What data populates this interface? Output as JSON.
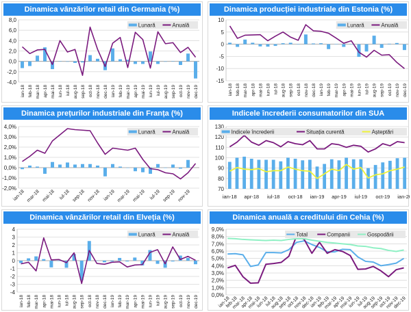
{
  "colors": {
    "title_bar": "#2a8cea",
    "bar": "#5aaeea",
    "purple": "#7a1a7e",
    "yellow": "#eef23a",
    "mint": "#8ff0c4",
    "total": "#5aaeea"
  },
  "chart_data": [
    {
      "type": "bar+line",
      "title": "Dinamica vânzărilor retail din Germania (%)",
      "categories": [
        "ian-18",
        "feb-18",
        "mar-18",
        "apr-18",
        "mai-18",
        "iun-18",
        "iul-18",
        "aug-18",
        "sep-18",
        "oct-18",
        "nov-18",
        "dec-18",
        "ian-19",
        "feb-19",
        "mar-19",
        "apr-19",
        "mai-19",
        "iun-19",
        "iul-19",
        "aug-19",
        "sep-19",
        "oct-19",
        "nov-19",
        "dec-19"
      ],
      "x_tick_step": 1,
      "ylim": [
        -4,
        8
      ],
      "y_tick_labels": [
        "8,0",
        "6,0",
        "4,0",
        "2,0",
        "0,0",
        "-2,0",
        "-4,0"
      ],
      "grid": true,
      "legend": "top-right",
      "series": [
        {
          "name": "Lunară",
          "kind": "bar",
          "color": "#5aaeea",
          "values": [
            -1.3,
            -0.9,
            1.1,
            2.7,
            -1.5,
            0.05,
            0.0,
            -0.3,
            -0.2,
            1.2,
            0.5,
            -1.7,
            2.5,
            0.4,
            0.3,
            -0.5,
            -0.5,
            1.9,
            -0.5,
            0.0,
            0.05,
            -0.7,
            1.5,
            -3.3
          ]
        },
        {
          "name": "Anuală",
          "kind": "line",
          "color": "#7a1a7e",
          "values": [
            2.8,
            1.5,
            2.2,
            2.3,
            -0.6,
            4.0,
            1.8,
            2.3,
            -2.7,
            6.6,
            2.3,
            -1.0,
            3.5,
            4.6,
            -1.2,
            5.6,
            4.2,
            -1.3,
            5.7,
            3.4,
            3.6,
            1.7,
            2.7,
            0.8
          ]
        }
      ]
    },
    {
      "type": "bar+line",
      "title": "Dinamica producției industriale din Estonia (%)",
      "categories": [
        "ian-18",
        "feb-18",
        "mar-18",
        "apr-18",
        "mai-18",
        "iun-18",
        "iul-18",
        "aug-18",
        "sep-18",
        "oct-18",
        "nov-18",
        "dec-18",
        "ian-19",
        "feb-19",
        "mar-19",
        "apr-19",
        "mai-19",
        "iun-19",
        "iul-19",
        "aug-19",
        "sep-19",
        "oct-19",
        "nov-19",
        "dec-19"
      ],
      "x_tick_step": 1,
      "ylim": [
        -15,
        10
      ],
      "y_tick_labels": [
        "10",
        "5",
        "0",
        "-5",
        "-10",
        "-15"
      ],
      "grid": true,
      "legend": "top-right",
      "series": [
        {
          "name": "Lunară",
          "kind": "bar",
          "color": "#5aaeea",
          "values": [
            0.6,
            -1.1,
            1.9,
            0.6,
            -0.9,
            -1.0,
            -0.7,
            0.4,
            0.6,
            0.0,
            4.0,
            0.3,
            0.4,
            -2.0,
            0.05,
            -1.1,
            0.0,
            -5.2,
            -3.0,
            3.5,
            -1.5,
            0.2,
            0.5,
            -2.4
          ]
        },
        {
          "name": "Anuală",
          "kind": "line",
          "color": "#7a1a7e",
          "values": [
            7.5,
            2.4,
            3.7,
            3.8,
            3.9,
            1.4,
            3.3,
            5.0,
            2.9,
            1.6,
            8.0,
            5.5,
            5.3,
            4.5,
            2.5,
            0.4,
            1.4,
            -3.3,
            -5.3,
            -2.5,
            -4.5,
            -4.3,
            -7.5,
            -10.0
          ]
        }
      ]
    },
    {
      "type": "bar+line",
      "title": "Dinamica prețurilor industriale din Franța (%)",
      "categories": [
        "ian-18",
        "feb-18",
        "mar-18",
        "apr-18",
        "mai-18",
        "iun-18",
        "iul-18",
        "aug-18",
        "sep-18",
        "oct-18",
        "nov-18",
        "dec-18",
        "ian-19",
        "feb-19",
        "mar-19",
        "apr-19",
        "mai-19",
        "iun-19",
        "iul-19",
        "aug-19",
        "sep-19",
        "oct-19",
        "nov-19",
        "dec-19"
      ],
      "x_tick_step": 2,
      "ylim": [
        -2,
        4
      ],
      "y_tick_labels": [
        "4,0%",
        "3,0%",
        "2,0%",
        "1,0%",
        "0,0%",
        "-1,0%",
        "-2,0%"
      ],
      "grid": true,
      "legend": "top-right",
      "series": [
        {
          "name": "Lunară",
          "kind": "bar",
          "color": "#5aaeea",
          "values": [
            -0.15,
            0.2,
            0.1,
            -0.6,
            0.55,
            0.3,
            0.5,
            0.3,
            0.35,
            0.35,
            0.2,
            -0.85,
            0.35,
            0.1,
            0.0,
            -0.35,
            -0.45,
            -0.6,
            0.35,
            0.0,
            0.3,
            -0.1,
            0.75,
            null
          ]
        },
        {
          "name": "Anuală",
          "kind": "line",
          "color": "#7a1a7e",
          "values": [
            0.6,
            1.1,
            1.7,
            1.4,
            2.6,
            3.2,
            3.8,
            3.7,
            3.65,
            3.6,
            2.4,
            1.3,
            1.9,
            1.8,
            1.7,
            1.9,
            0.8,
            -0.1,
            -0.2,
            -0.5,
            -0.6,
            -1.1,
            -0.5,
            0.4
          ]
        }
      ]
    },
    {
      "type": "bar+line",
      "title": "Indicele încrederii consumatorilor din SUA",
      "categories": [
        "ian-18",
        "feb-18",
        "mar-18",
        "apr-18",
        "mai-18",
        "iun-18",
        "iul-18",
        "aug-18",
        "sep-18",
        "oct-18",
        "nov-18",
        "dec-18",
        "ian-19",
        "feb-19",
        "mar-19",
        "apr-19",
        "mai-19",
        "iun-19",
        "iul-19",
        "aug-19",
        "sep-19",
        "oct-19",
        "nov-19",
        "dec-19",
        "ian-20"
      ],
      "x_tick_step": 3,
      "ylim": [
        70,
        130
      ],
      "y_tick_labels": [
        "130",
        "120",
        "110",
        "100",
        "90",
        "80",
        "70"
      ],
      "grid": true,
      "legend": "top",
      "series": [
        {
          "name": "Indicele încrederii",
          "kind": "bar",
          "color": "#5aaeea",
          "values": [
            96,
            100,
            101,
            99,
            98,
            98,
            98,
            96.5,
            100,
            99,
            97.5,
            98,
            91.5,
            94,
            98.5,
            97.5,
            100,
            98.5,
            98.5,
            90,
            93,
            95.5,
            97,
            99.5,
            100
          ]
        },
        {
          "name": "Situația curentă",
          "kind": "line",
          "color": "#7a1a7e",
          "values": [
            110.5,
            115,
            121.5,
            115,
            112,
            116.5,
            114.5,
            110.5,
            115.5,
            113.5,
            112.5,
            116.5,
            108.5,
            108.5,
            113.5,
            112.5,
            110,
            112,
            111,
            105.5,
            108.5,
            113.5,
            111.5,
            115.5,
            114.5
          ]
        },
        {
          "name": "Așteptări",
          "kind": "line",
          "color": "#eef23a",
          "values": [
            87,
            90.5,
            89,
            88.5,
            89.5,
            86.5,
            87.5,
            87.5,
            91,
            89,
            87.5,
            87,
            80,
            84.5,
            89,
            87.5,
            93.5,
            89,
            90.5,
            80.5,
            83.5,
            84.5,
            87.5,
            89,
            91
          ]
        }
      ]
    },
    {
      "type": "bar+line",
      "title": "Dinamica vânzărilor retail din Elveția (%)",
      "categories": [
        "ian-18",
        "feb-18",
        "mar-18",
        "apr-18",
        "mai-18",
        "iun-18",
        "iul-18",
        "aug-18",
        "sep-18",
        "oct-18",
        "nov-18",
        "dec-18",
        "ian-19",
        "feb-19",
        "mar-19",
        "apr-19",
        "mai-19",
        "iun-19",
        "iul-19",
        "aug-19",
        "sep-19",
        "oct-19",
        "nov-19",
        "dec-19"
      ],
      "x_tick_step": 1,
      "ylim": [
        -4,
        4
      ],
      "y_tick_labels": [
        "4",
        "3",
        "2",
        "1",
        "0",
        "-1",
        "-2",
        "-3",
        "-4"
      ],
      "grid": true,
      "legend": "top-right",
      "series": [
        {
          "name": "Lunară",
          "kind": "bar",
          "color": "#5aaeea",
          "values": [
            -0.3,
            0.3,
            0.55,
            0.2,
            -0.85,
            0.0,
            -0.9,
            0.85,
            -2.5,
            2.5,
            0.0,
            -0.2,
            -0.1,
            0.35,
            -0.1,
            0.4,
            -0.6,
            1.35,
            -0.4,
            -0.9,
            -0.1,
            0.65,
            0.35,
            -0.45
          ]
        },
        {
          "name": "Anuală",
          "kind": "line",
          "color": "#7a1a7e",
          "values": [
            -0.4,
            -0.2,
            -1.3,
            2.9,
            0.1,
            0.15,
            -0.25,
            1.0,
            -2.9,
            1.3,
            -0.35,
            -0.45,
            -0.2,
            -0.15,
            -0.8,
            -0.55,
            -0.5,
            1.05,
            1.4,
            -0.4,
            1.75,
            0.15,
            0.55,
            0.05
          ]
        }
      ]
    },
    {
      "type": "line",
      "title": "Dinamica anuală a creditului din Cehia (%)",
      "categories": [
        "ian-18",
        "feb-18",
        "mar-18",
        "apr-18",
        "mai-18",
        "iun-18",
        "iul-18",
        "aug-18",
        "sep-18",
        "oct-18",
        "nov-18",
        "dec-18",
        "ian-19",
        "feb-19",
        "mar-19",
        "apr-19",
        "mai-19",
        "iun-19",
        "iul-19",
        "aug-19",
        "sep-19",
        "oct-19",
        "nov-19",
        "dec-19"
      ],
      "x_tick_step": 1,
      "ylim": [
        0,
        9
      ],
      "y_tick_labels": [
        "9,0%",
        "8,0%",
        "7,0%",
        "6,0%",
        "5,0%",
        "4,0%",
        "3,0%",
        "2,0%",
        "1,0%",
        "0,0%"
      ],
      "grid": true,
      "legend": "top",
      "series": [
        {
          "name": "Total",
          "kind": "line",
          "color": "#5aaeea",
          "values": [
            5.6,
            5.65,
            5.5,
            3.9,
            4.1,
            5.8,
            5.8,
            5.75,
            6.2,
            7.2,
            7.4,
            6.9,
            6.5,
            5.9,
            5.9,
            6.25,
            6.2,
            5.2,
            4.6,
            4.5,
            4.0,
            4.15,
            4.35,
            5.0
          ]
        },
        {
          "name": "Companii",
          "kind": "line",
          "color": "#7a1a7e",
          "values": [
            3.7,
            4.05,
            2.5,
            1.6,
            1.65,
            4.2,
            4.3,
            4.45,
            5.3,
            8.1,
            7.6,
            5.7,
            7.2,
            5.7,
            6.2,
            5.95,
            5.4,
            3.5,
            3.55,
            3.9,
            3.3,
            2.5,
            3.45,
            3.7
          ]
        },
        {
          "name": "Gospodării",
          "kind": "line",
          "color": "#8ff0c4",
          "values": [
            7.75,
            7.7,
            7.6,
            7.55,
            7.5,
            7.45,
            7.5,
            7.45,
            7.6,
            7.7,
            7.7,
            7.5,
            7.35,
            7.2,
            7.1,
            7.0,
            6.9,
            6.7,
            6.65,
            6.45,
            6.35,
            6.1,
            5.95,
            6.15
          ]
        }
      ]
    }
  ]
}
